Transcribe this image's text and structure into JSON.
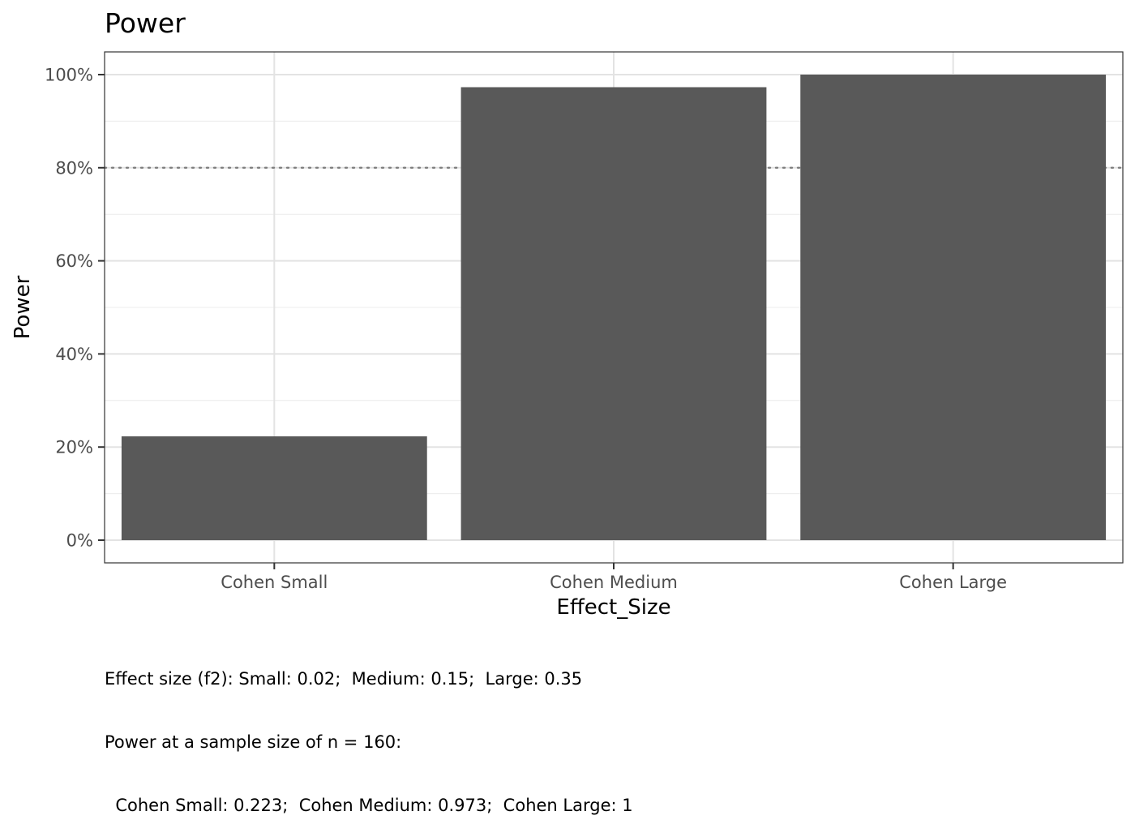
{
  "chart_data": {
    "type": "bar",
    "title": "Power",
    "xlabel": "Effect_Size",
    "ylabel": "Power",
    "categories": [
      "Cohen Small",
      "Cohen Medium",
      "Cohen Large"
    ],
    "values": [
      0.223,
      0.973,
      1.0
    ],
    "ylim": [
      0,
      1
    ],
    "y_ticks": [
      0,
      0.2,
      0.4,
      0.6,
      0.8,
      1.0
    ],
    "y_tick_labels": [
      "0%",
      "20%",
      "40%",
      "60%",
      "80%",
      "100%"
    ],
    "reference_line": {
      "y": 0.8,
      "style": "dotted"
    },
    "grid": true,
    "legend": "none",
    "bar_color": "#595959"
  },
  "caption": {
    "line1": "Effect size (f2): Small: 0.02;  Medium: 0.15;  Large: 0.35",
    "line2": "Power at a sample size of n = 160:",
    "line3": "  Cohen Small: 0.223;  Cohen Medium: 0.973;  Cohen Large: 1"
  }
}
